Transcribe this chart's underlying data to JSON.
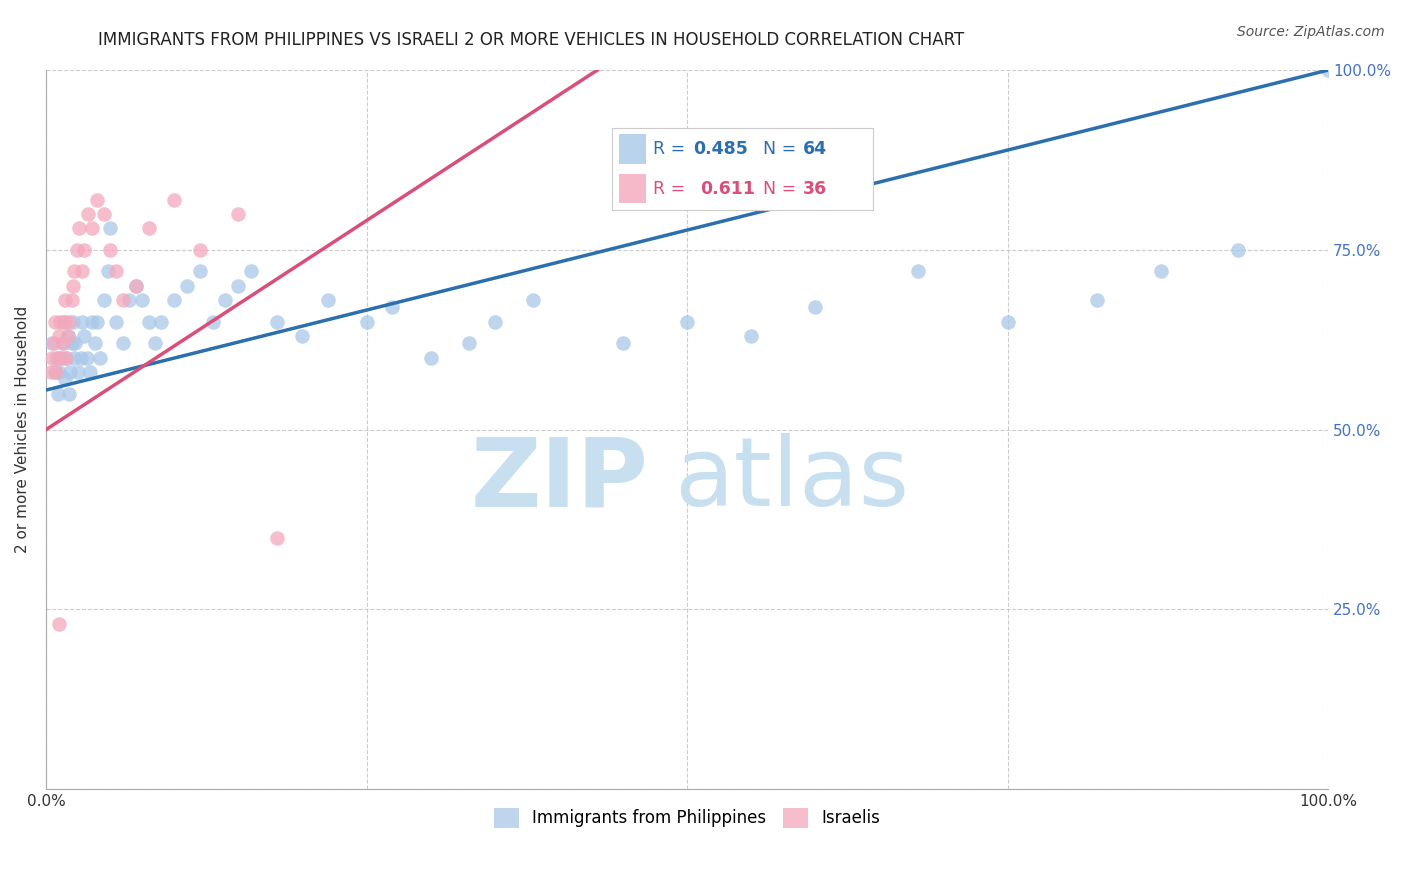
{
  "title": "IMMIGRANTS FROM PHILIPPINES VS ISRAELI 2 OR MORE VEHICLES IN HOUSEHOLD CORRELATION CHART",
  "source": "Source: ZipAtlas.com",
  "ylabel": "2 or more Vehicles in Household",
  "xlim": [
    0,
    1
  ],
  "ylim": [
    0,
    1
  ],
  "blue_R": 0.485,
  "blue_N": 64,
  "pink_R": 0.611,
  "pink_N": 36,
  "blue_color": "#a8c8e8",
  "pink_color": "#f4a8bc",
  "blue_line_color": "#2c6fad",
  "pink_line_color": "#d94f7a",
  "blue_label": "Immigrants from Philippines",
  "pink_label": "Israelis",
  "background_color": "#ffffff",
  "watermark_zip_color": "#c8dff0",
  "watermark_atlas_color": "#c8dff0",
  "title_fontsize": 12,
  "axis_label_fontsize": 11,
  "tick_fontsize": 11,
  "right_tick_color": "#4472c4",
  "grid_color": "#cccccc",
  "blue_x": [
    0.005,
    0.007,
    0.008,
    0.009,
    0.01,
    0.012,
    0.013,
    0.014,
    0.015,
    0.016,
    0.017,
    0.018,
    0.019,
    0.02,
    0.021,
    0.022,
    0.023,
    0.025,
    0.027,
    0.028,
    0.03,
    0.032,
    0.034,
    0.036,
    0.038,
    0.04,
    0.042,
    0.045,
    0.048,
    0.05,
    0.055,
    0.06,
    0.065,
    0.07,
    0.075,
    0.08,
    0.085,
    0.09,
    0.1,
    0.11,
    0.12,
    0.13,
    0.14,
    0.15,
    0.16,
    0.18,
    0.2,
    0.22,
    0.25,
    0.27,
    0.3,
    0.33,
    0.35,
    0.38,
    0.45,
    0.5,
    0.55,
    0.6,
    0.68,
    0.75,
    0.82,
    0.87,
    0.93,
    1.0
  ],
  "blue_y": [
    0.62,
    0.58,
    0.6,
    0.55,
    0.58,
    0.6,
    0.62,
    0.65,
    0.57,
    0.6,
    0.63,
    0.55,
    0.58,
    0.62,
    0.65,
    0.6,
    0.62,
    0.58,
    0.6,
    0.65,
    0.63,
    0.6,
    0.58,
    0.65,
    0.62,
    0.65,
    0.6,
    0.68,
    0.72,
    0.78,
    0.65,
    0.62,
    0.68,
    0.7,
    0.68,
    0.65,
    0.62,
    0.65,
    0.68,
    0.7,
    0.72,
    0.65,
    0.68,
    0.7,
    0.72,
    0.65,
    0.63,
    0.68,
    0.65,
    0.67,
    0.6,
    0.62,
    0.65,
    0.68,
    0.62,
    0.65,
    0.63,
    0.67,
    0.72,
    0.65,
    0.68,
    0.72,
    0.75,
    1.0
  ],
  "pink_x": [
    0.004,
    0.005,
    0.006,
    0.007,
    0.008,
    0.009,
    0.01,
    0.011,
    0.012,
    0.013,
    0.014,
    0.015,
    0.016,
    0.017,
    0.018,
    0.02,
    0.021,
    0.022,
    0.024,
    0.026,
    0.028,
    0.03,
    0.033,
    0.036,
    0.04,
    0.045,
    0.05,
    0.055,
    0.06,
    0.07,
    0.08,
    0.1,
    0.12,
    0.15,
    0.18,
    0.01
  ],
  "pink_y": [
    0.58,
    0.6,
    0.62,
    0.65,
    0.58,
    0.6,
    0.63,
    0.65,
    0.6,
    0.62,
    0.65,
    0.68,
    0.6,
    0.63,
    0.65,
    0.68,
    0.7,
    0.72,
    0.75,
    0.78,
    0.72,
    0.75,
    0.8,
    0.78,
    0.82,
    0.8,
    0.75,
    0.72,
    0.68,
    0.7,
    0.78,
    0.82,
    0.75,
    0.8,
    0.35,
    0.23
  ],
  "blue_line_x0": 0.0,
  "blue_line_x1": 1.0,
  "blue_line_y0": 0.555,
  "blue_line_y1": 1.0,
  "pink_line_x0": 0.0,
  "pink_line_x1": 0.43,
  "pink_line_y0": 0.5,
  "pink_line_y1": 1.0
}
